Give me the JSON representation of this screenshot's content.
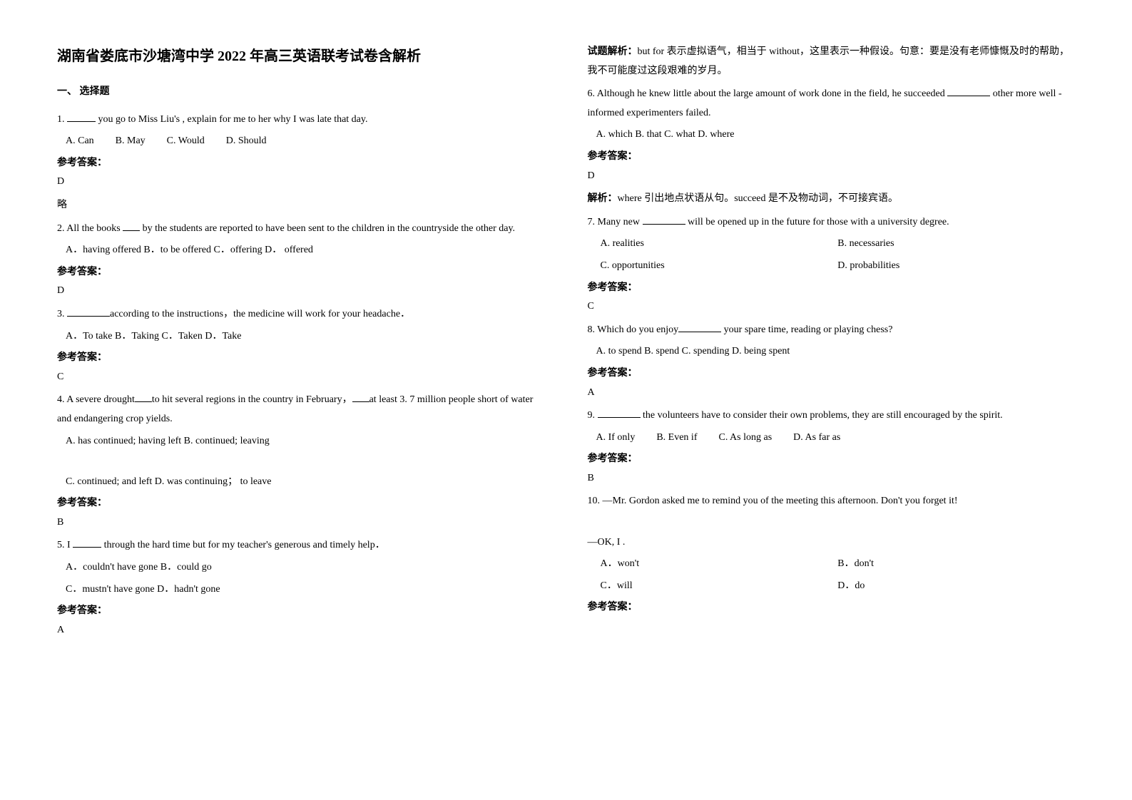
{
  "title": "湖南省娄底市沙塘湾中学 2022 年高三英语联考试卷含解析",
  "section1_heading": "一、 选择题",
  "answer_label": "参考答案：",
  "explanation_label": "解析：",
  "explanation_label2": "试题解析：",
  "short_note": "略",
  "q1": {
    "text_before": "1. ",
    "text_after": " you go to Miss Liu's , explain for me to her why I was late that day.",
    "optA": "A. Can",
    "optB": "B. May",
    "optC": "C. Would",
    "optD": "D. Should",
    "answer": "D"
  },
  "q2": {
    "text_before": "2. All the books ",
    "text_after": " by the students are reported to have been sent to the children in the countryside the other day.",
    "opts": "A．having offered      B．to be offered  C．offering    D． offered",
    "answer": "D"
  },
  "q3": {
    "text_before": "3. ",
    "text_after": "according to the instructions，the medicine will work for your headache．",
    "opts": "A．To take  B．Taking   C．Taken   D．Take",
    "answer": "C"
  },
  "q4": {
    "text_before": "4. A severe drought",
    "text_mid": "to hit several regions in the country in February，",
    "text_after": "at least 3. 7 million people short of water and endangering crop yields.",
    "optAB": "A. has continued; having left     B. continued; leaving",
    "optCD": "C. continued; and left           D. was continuing； to leave",
    "answer": "B"
  },
  "q5": {
    "text_before": "5. I ",
    "text_after": " through the hard time but for my teacher's generous and timely help．",
    "optAB": "A．couldn't have gone   B．could go",
    "optCD": "C．mustn't have gone   D．hadn't gone",
    "answer": "A",
    "explanation": "but for 表示虚拟语气，相当于 without，这里表示一种假设。句意：要是没有老师慷慨及时的帮助，我不可能度过这段艰难的岁月。"
  },
  "q6": {
    "text_before": "6. Although he knew little about the large amount of work done in the field, he succeeded ",
    "text_after": " other more well - informed experimenters failed.",
    "opts": "A. which    B. that    C. what    D. where",
    "answer": "D",
    "explanation": "where 引出地点状语从句。succeed 是不及物动词，不可接宾语。"
  },
  "q7": {
    "text_before": "7. Many new ",
    "text_after": " will be opened up in the future for those with a university degree.",
    "optA": "A. realities",
    "optB": "B. necessaries",
    "optC": "C. opportunities",
    "optD": "D. probabilities",
    "answer": "C"
  },
  "q8": {
    "text_before": "8. Which do you enjoy",
    "text_after": " your spare time, reading or playing chess?",
    "opts": "A. to spend     B. spend     C. spending    D. being spent",
    "answer": "A"
  },
  "q9": {
    "text_before": "9. ",
    "text_after": " the volunteers have to consider their own problems, they are still encouraged by the spirit.",
    "optA": "A. If only",
    "optB": "B. Even if",
    "optC": "C. As long as",
    "optD": "D. As far as",
    "answer": "B"
  },
  "q10": {
    "text1": "10. —Mr. Gordon asked me to remind you of the meeting this afternoon. Don't you forget it!",
    "text2_before": "—OK, I ",
    "text2_after": "    .",
    "optA": "A．won't",
    "optB": "B．don't",
    "optC": "C．will",
    "optD": "D．do"
  }
}
